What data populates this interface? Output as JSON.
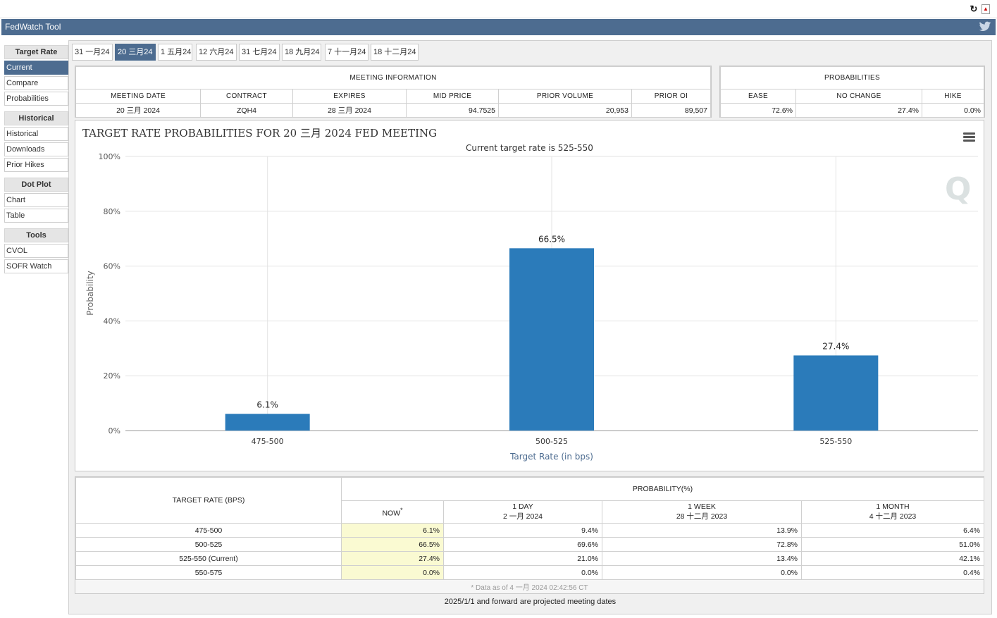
{
  "header": {
    "title": "FedWatch Tool"
  },
  "sidebar": {
    "sections": [
      {
        "label": "Target Rate",
        "items": [
          "Current",
          "Compare",
          "Probabilities"
        ]
      },
      {
        "label": "Historical",
        "items": [
          "Historical",
          "Downloads",
          "Prior Hikes"
        ]
      },
      {
        "label": "Dot Plot",
        "items": [
          "Chart",
          "Table"
        ]
      },
      {
        "label": "Tools",
        "items": [
          "CVOL",
          "SOFR Watch"
        ]
      }
    ],
    "active_item": "Current"
  },
  "tabs": [
    "31 一月24",
    "20 三月24",
    "1 五月24",
    "12 六月24",
    "31 七月24",
    "18 九月24",
    "7 十一月24",
    "18 十二月24"
  ],
  "active_tab": "20 三月24",
  "meeting_info": {
    "group_label": "MEETING INFORMATION",
    "headers": [
      "MEETING DATE",
      "CONTRACT",
      "EXPIRES",
      "MID PRICE",
      "PRIOR VOLUME",
      "PRIOR OI"
    ],
    "values": [
      "20 三月 2024",
      "ZQH4",
      "28 三月 2024",
      "94.7525",
      "20,953",
      "89,507"
    ]
  },
  "probabilities_summary": {
    "group_label": "PROBABILITIES",
    "headers": [
      "EASE",
      "NO CHANGE",
      "HIKE"
    ],
    "values": [
      "72.6%",
      "27.4%",
      "0.0%"
    ]
  },
  "chart_data": {
    "type": "bar",
    "title": "TARGET RATE PROBABILITIES FOR 20 三月 2024 FED MEETING",
    "subtitle": "Current target rate is 525-550",
    "xlabel": "Target Rate (in bps)",
    "ylabel": "Probability",
    "categories": [
      "475-500",
      "500-525",
      "525-550"
    ],
    "values": [
      6.1,
      66.5,
      27.4
    ],
    "data_labels": [
      "6.1%",
      "66.5%",
      "27.4%"
    ],
    "ylim": [
      0,
      100
    ],
    "yticks": [
      "0%",
      "20%",
      "40%",
      "60%",
      "80%",
      "100%"
    ],
    "color": "#2b7bba",
    "grid": true
  },
  "prob_table": {
    "col_target": "TARGET RATE (BPS)",
    "group_label": "PROBABILITY(%)",
    "cols": [
      {
        "line1": "NOW",
        "line2": "",
        "star": "*"
      },
      {
        "line1": "1 DAY",
        "line2": "2 一月 2024",
        "star": ""
      },
      {
        "line1": "1 WEEK",
        "line2": "28 十二月 2023",
        "star": ""
      },
      {
        "line1": "1 MONTH",
        "line2": "4 十二月 2023",
        "star": ""
      }
    ],
    "rows": [
      {
        "rate": "475-500",
        "vals": [
          "6.1%",
          "9.4%",
          "13.9%",
          "6.4%"
        ]
      },
      {
        "rate": "500-525",
        "vals": [
          "66.5%",
          "69.6%",
          "72.8%",
          "51.0%"
        ]
      },
      {
        "rate": "525-550 (Current)",
        "vals": [
          "27.4%",
          "21.0%",
          "13.4%",
          "42.1%"
        ]
      },
      {
        "rate": "550-575",
        "vals": [
          "0.0%",
          "0.0%",
          "0.0%",
          "0.4%"
        ]
      }
    ],
    "footnote": "* Data as of 4 一月 2024 02:42:56 CT"
  },
  "footer": "2025/1/1 and forward are projected meeting dates"
}
